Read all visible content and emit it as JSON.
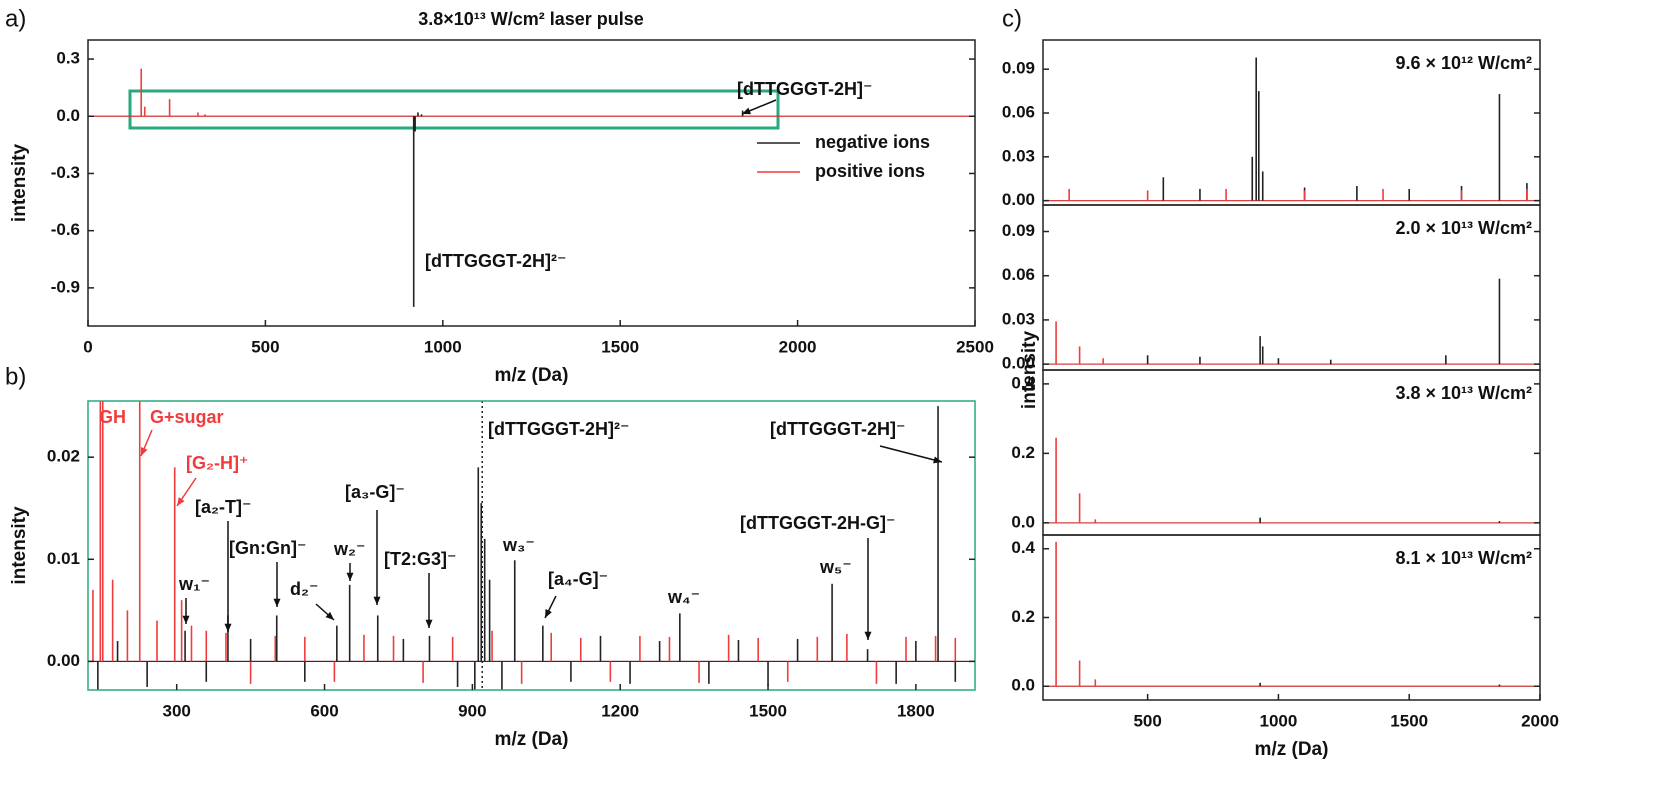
{
  "chart_data": [
    {
      "type": "spectrum",
      "panel_label": "a)",
      "title": "3.8×10¹³ W/cm² laser pulse",
      "xlabel": "m/z (Da)",
      "ylabel": "intensity",
      "xlim": [
        0,
        2500
      ],
      "xticks": [
        0,
        500,
        1000,
        1500,
        2000,
        2500
      ],
      "ylim": [
        -1.1,
        0.4
      ],
      "yticks": [
        0.3,
        {
          "value": 0,
          "label": "0.0"
        },
        -0.3,
        -0.6,
        -0.9
      ],
      "legend": "right",
      "series": [
        {
          "name": "negative ions",
          "color": "#222222",
          "x": [
            918,
            922,
            930,
            940,
            1845
          ],
          "values": [
            -1.0,
            -0.08,
            0.02,
            0.01,
            0.03
          ]
        },
        {
          "name": "positive ions",
          "color": "#f03c3c",
          "x": [
            150,
            160,
            230,
            310,
            330
          ],
          "values": [
            0.25,
            0.05,
            0.09,
            0.02,
            0.01
          ]
        }
      ],
      "annotations": [
        {
          "text": "[dTTGGGT-2H]⁻"
        },
        {
          "text": "[dTTGGGT-2H]²⁻"
        }
      ]
    },
    {
      "type": "spectrum",
      "panel_label": "b)",
      "xlabel": "m/z (Da)",
      "ylabel": "intensity",
      "frame_color": "#2aa87e",
      "xlim": [
        120,
        1920
      ],
      "xticks": [
        300,
        600,
        900,
        1200,
        1500,
        1800
      ],
      "ylim": [
        -0.0028,
        0.0255
      ],
      "yticks": [
        {
          "value": 0,
          "label": "0.00"
        },
        {
          "value": 0.01,
          "label": "0.01"
        },
        {
          "value": 0.02,
          "label": "0.02"
        }
      ],
      "vline": 920,
      "series": [
        {
          "color": "#f03c3c",
          "x": [
            130,
            145,
            150,
            170,
            200,
            225,
            260,
            296,
            310,
            330,
            360,
            400,
            450,
            500,
            560,
            620,
            680,
            740,
            800,
            860,
            940,
            1000,
            1060,
            1120,
            1180,
            1240,
            1300,
            1360,
            1420,
            1480,
            1540,
            1600,
            1660,
            1720,
            1780,
            1840,
            1880
          ],
          "values": [
            0.007,
            0.03,
            0.03,
            0.008,
            0.005,
            0.03,
            0.004,
            0.019,
            0.006,
            0.0035,
            0.003,
            0.0028,
            -0.0022,
            0.0025,
            0.0024,
            -0.002,
            0.0026,
            0.0025,
            -0.0021,
            0.0024,
            0.003,
            -0.0022,
            0.0028,
            0.0023,
            -0.002,
            0.0025,
            0.0024,
            -0.0021,
            0.0026,
            0.0023,
            -0.002,
            0.0024,
            0.0027,
            -0.0022,
            0.0024,
            0.0025,
            0.0023
          ]
        },
        {
          "color": "#222222",
          "x": [
            140,
            180,
            240,
            317,
            360,
            404,
            450,
            503,
            560,
            625,
            651,
            708,
            760,
            813,
            870,
            905,
            912,
            918,
            925,
            935,
            960,
            986,
            1043,
            1100,
            1160,
            1220,
            1280,
            1321,
            1380,
            1440,
            1500,
            1560,
            1630,
            1702,
            1760,
            1800,
            1845,
            1880
          ],
          "values": [
            -0.0028,
            0.002,
            -0.0025,
            0.003,
            -0.002,
            0.0045,
            0.0022,
            0.0045,
            -0.002,
            0.0035,
            0.0075,
            0.0045,
            0.0022,
            0.0025,
            -0.0025,
            -0.0028,
            0.019,
            0.0155,
            0.012,
            0.008,
            -0.0028,
            0.0099,
            0.0035,
            -0.002,
            0.0025,
            -0.0022,
            0.002,
            0.0047,
            -0.0022,
            0.0021,
            -0.0024,
            0.0022,
            0.0076,
            0.0012,
            -0.0022,
            0.002,
            0.025,
            -0.002
          ]
        }
      ],
      "annotations": [
        {
          "text": "GH",
          "color": "#f03c3c"
        },
        {
          "text": "G+sugar",
          "color": "#f03c3c"
        },
        {
          "text": "[G₂-H]⁺",
          "color": "#f03c3c"
        },
        {
          "text": "[a₂-T]⁻"
        },
        {
          "text": "[Gn:Gn]⁻"
        },
        {
          "text": "w₁⁻"
        },
        {
          "text": "d₂⁻"
        },
        {
          "text": "w₂⁻"
        },
        {
          "text": "[a₃-G]⁻"
        },
        {
          "text": "[T2:G3]⁻"
        },
        {
          "text": "[dTTGGGT-2H]²⁻"
        },
        {
          "text": "w₃⁻"
        },
        {
          "text": "[a₄-G]⁻"
        },
        {
          "text": "w₄⁻"
        },
        {
          "text": "w₅⁻"
        },
        {
          "text": "[dTTGGGT-2H]⁻"
        },
        {
          "text": "[dTTGGGT-2H-G]⁻"
        }
      ]
    },
    {
      "type": "spectrum",
      "title": "9.6 × 10¹² W/cm²",
      "xlim": [
        100,
        2000
      ],
      "ylim": [
        -0.003,
        0.11
      ],
      "yticks": [
        {
          "value": 0,
          "label": "0.00"
        },
        {
          "value": 0.03,
          "label": "0.03"
        },
        {
          "value": 0.06,
          "label": "0.06"
        },
        0.09
      ],
      "series": [
        {
          "color": "#222222",
          "x": [
            560,
            700,
            900,
            915,
            925,
            940,
            1100,
            1300,
            1500,
            1700,
            1845,
            1950
          ],
          "values": [
            0.016,
            0.008,
            0.03,
            0.098,
            0.075,
            0.02,
            0.009,
            0.01,
            0.008,
            0.01,
            0.073,
            0.012
          ]
        },
        {
          "color": "#f03c3c",
          "x": [
            200,
            500,
            800,
            1100,
            1400,
            1700,
            1950
          ],
          "values": [
            0.008,
            0.007,
            0.008,
            0.007,
            0.008,
            0.007,
            0.008
          ]
        }
      ]
    },
    {
      "type": "spectrum",
      "title": "2.0 × 10¹³ W/cm²",
      "xlim": [
        100,
        2000
      ],
      "ylim": [
        -0.004,
        0.108
      ],
      "yticks": [
        {
          "value": 0,
          "label": "0.00"
        },
        {
          "value": 0.03,
          "label": "0.03"
        },
        {
          "value": 0.06,
          "label": "0.06"
        },
        0.09
      ],
      "series": [
        {
          "color": "#222222",
          "x": [
            500,
            700,
            930,
            940,
            1000,
            1200,
            1640,
            1845
          ],
          "values": [
            0.006,
            0.005,
            0.019,
            0.012,
            0.004,
            0.003,
            0.006,
            0.058
          ]
        },
        {
          "color": "#f03c3c",
          "x": [
            150,
            240,
            330
          ],
          "values": [
            0.029,
            0.012,
            0.004
          ]
        }
      ]
    },
    {
      "type": "spectrum",
      "title": "3.8 × 10¹³ W/cm²",
      "xlim": [
        100,
        2000
      ],
      "ylim": [
        -0.035,
        0.44
      ],
      "yticks": [
        {
          "value": 0,
          "label": "0.0"
        },
        0.2,
        0.4
      ],
      "series": [
        {
          "color": "#222222",
          "x": [
            930,
            1845
          ],
          "values": [
            0.015,
            0.005
          ]
        },
        {
          "color": "#f03c3c",
          "x": [
            150,
            240,
            300
          ],
          "values": [
            0.245,
            0.085,
            0.01
          ]
        }
      ]
    },
    {
      "type": "spectrum",
      "title": "8.1 × 10¹³ W/cm²",
      "xlabel": "m/z (Da)",
      "xlim": [
        100,
        2000
      ],
      "xticks": [
        500,
        1000,
        1500,
        2000
      ],
      "ylim": [
        -0.04,
        0.44
      ],
      "yticks": [
        {
          "value": 0,
          "label": "0.0"
        },
        0.2,
        0.4
      ],
      "series": [
        {
          "color": "#222222",
          "x": [
            930,
            1845
          ],
          "values": [
            0.01,
            0.005
          ]
        },
        {
          "color": "#f03c3c",
          "x": [
            150,
            240,
            300
          ],
          "values": [
            0.42,
            0.075,
            0.02
          ]
        }
      ]
    }
  ],
  "panel_c": {
    "label": "c)",
    "ylabel": "intensity"
  }
}
